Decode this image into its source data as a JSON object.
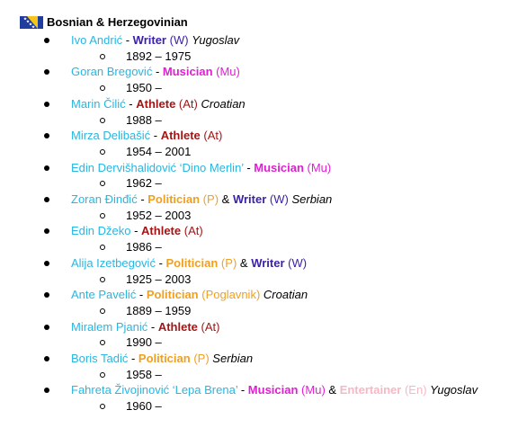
{
  "header": {
    "title": "Bosnian & Herzegovinian",
    "flag_icon": "bosnia-herzegovina-flag-icon"
  },
  "colors": {
    "name": "#29b6e0",
    "Writer": "#3b1fa8",
    "Musician": "#e01fd2",
    "Athlete": "#a31515",
    "Politician": "#f0a020",
    "Entertainer": "#f5b8c4"
  },
  "people": [
    {
      "name": "Ivo Andrić",
      "roles": [
        {
          "label": "Writer",
          "abbr": "W",
          "type": "Writer"
        }
      ],
      "nationality": "Yugoslav",
      "years": "1892 – 1975"
    },
    {
      "name": "Goran Bregović",
      "roles": [
        {
          "label": "Musician",
          "abbr": "Mu",
          "type": "Musician"
        }
      ],
      "nationality": "",
      "years": "1950 –"
    },
    {
      "name": "Marin Čilić",
      "roles": [
        {
          "label": "Athlete",
          "abbr": "At",
          "type": "Athlete"
        }
      ],
      "nationality": "Croatian",
      "years": "1988 –"
    },
    {
      "name": "Mirza Delibašić",
      "roles": [
        {
          "label": "Athlete",
          "abbr": "At",
          "type": "Athlete"
        }
      ],
      "nationality": "",
      "years": "1954 – 2001"
    },
    {
      "name": "Edin Dervišhalidović ‘Dino Merlin’",
      "roles": [
        {
          "label": "Musician",
          "abbr": "Mu",
          "type": "Musician"
        }
      ],
      "nationality": "",
      "years": "1962 –"
    },
    {
      "name": "Zoran Đinđić",
      "roles": [
        {
          "label": "Politician",
          "abbr": "P",
          "type": "Politician"
        },
        {
          "label": "Writer",
          "abbr": "W",
          "type": "Writer"
        }
      ],
      "nationality": "Serbian",
      "years": "1952 – 2003"
    },
    {
      "name": "Edin Džeko",
      "roles": [
        {
          "label": "Athlete",
          "abbr": "At",
          "type": "Athlete"
        }
      ],
      "nationality": "",
      "years": "1986 –"
    },
    {
      "name": "Alija Izetbegović",
      "roles": [
        {
          "label": "Politician",
          "abbr": "P",
          "type": "Politician"
        },
        {
          "label": "Writer",
          "abbr": "W",
          "type": "Writer"
        }
      ],
      "nationality": "",
      "years": "1925 – 2003"
    },
    {
      "name": "Ante Pavelić",
      "roles": [
        {
          "label": "Politician",
          "abbr": "Poglavnik",
          "type": "Politician"
        }
      ],
      "nationality": "Croatian",
      "years": "1889 – 1959"
    },
    {
      "name": "Miralem Pjanić",
      "roles": [
        {
          "label": "Athlete",
          "abbr": "At",
          "type": "Athlete"
        }
      ],
      "nationality": "",
      "years": "1990 –"
    },
    {
      "name": "Boris Tadić",
      "roles": [
        {
          "label": "Politician",
          "abbr": "P",
          "type": "Politician"
        }
      ],
      "nationality": "Serbian",
      "years": "1958 –"
    },
    {
      "name": "Fahreta Živojinović ‘Lepa Brena’",
      "roles": [
        {
          "label": "Musician",
          "abbr": "Mu",
          "type": "Musician"
        },
        {
          "label": "Entertainer",
          "abbr": "En",
          "type": "Entertainer"
        }
      ],
      "nationality": "Yugoslav",
      "years": "1960 –"
    }
  ]
}
